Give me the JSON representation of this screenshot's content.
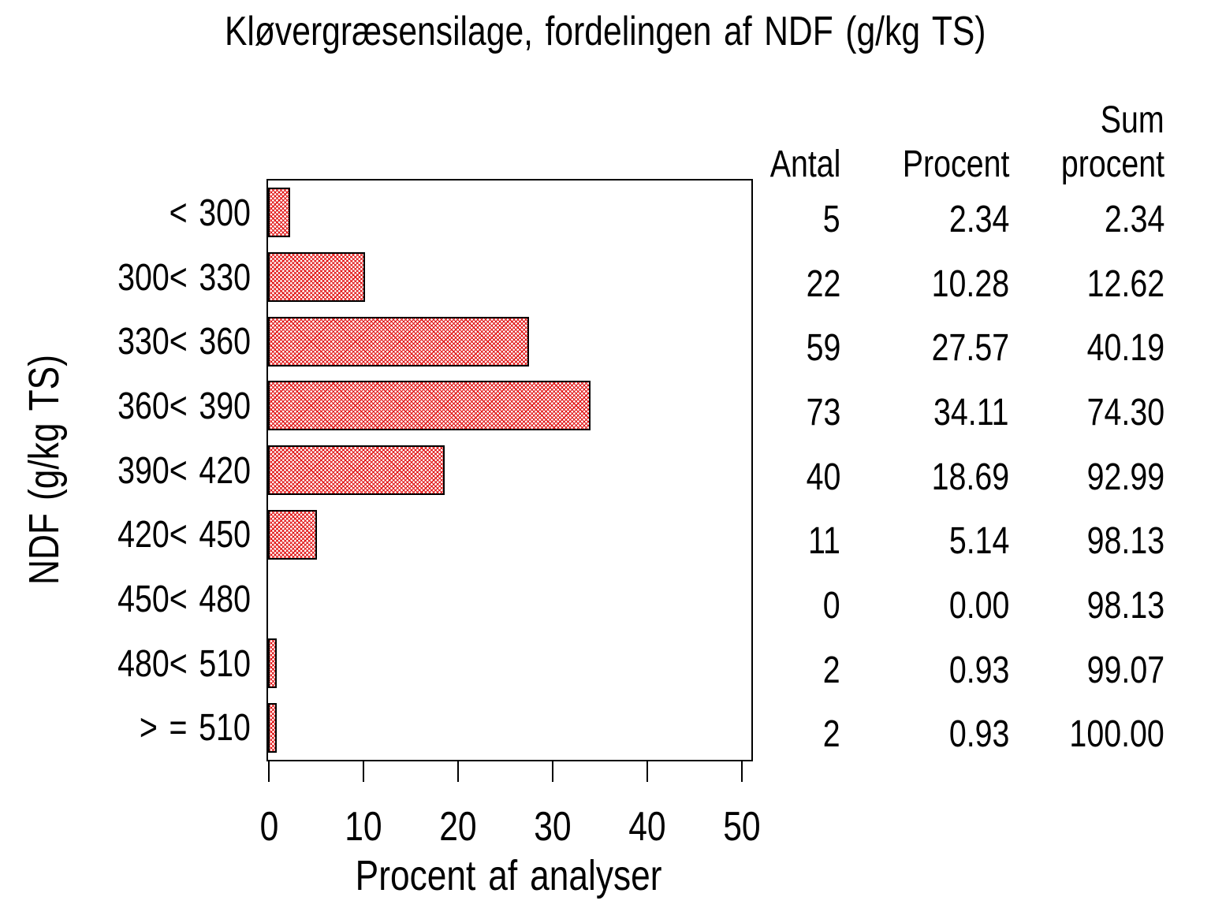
{
  "chart_data": {
    "type": "bar",
    "orientation": "horizontal",
    "title": "Kløvergræsensilage, fordelingen af NDF (g/kg TS)",
    "xlabel": "Procent af analyser",
    "ylabel": "NDF (g/kg TS)",
    "categories": [
      "< 300",
      "300< 330",
      "330< 360",
      "360< 390",
      "390< 420",
      "420< 450",
      "450< 480",
      "480< 510",
      "> = 510"
    ],
    "values": [
      2.34,
      10.28,
      27.57,
      34.11,
      18.69,
      5.14,
      0.0,
      0.93,
      0.93
    ],
    "xlim": [
      0,
      50
    ],
    "xticks": [
      0,
      10,
      20,
      30,
      40,
      50
    ],
    "grid": false,
    "legend": "none",
    "bar_style": {
      "fill_pattern": "diagonal-crosshatch",
      "pattern_color": "#e01010",
      "border_color": "#000000",
      "background": "#ffffff"
    },
    "table": {
      "columns": [
        "Antal",
        "Procent",
        "Sum procent"
      ],
      "header_line1": [
        "",
        "",
        "Sum"
      ],
      "header_line2": [
        "Antal",
        "Procent",
        "procent"
      ],
      "rows": [
        [
          "5",
          "2.34",
          "2.34"
        ],
        [
          "22",
          "10.28",
          "12.62"
        ],
        [
          "59",
          "27.57",
          "40.19"
        ],
        [
          "73",
          "34.11",
          "74.30"
        ],
        [
          "40",
          "18.69",
          "92.99"
        ],
        [
          "11",
          "5.14",
          "98.13"
        ],
        [
          "0",
          "0.00",
          "98.13"
        ],
        [
          "2",
          "0.93",
          "99.07"
        ],
        [
          "2",
          "0.93",
          "100.00"
        ]
      ]
    }
  }
}
